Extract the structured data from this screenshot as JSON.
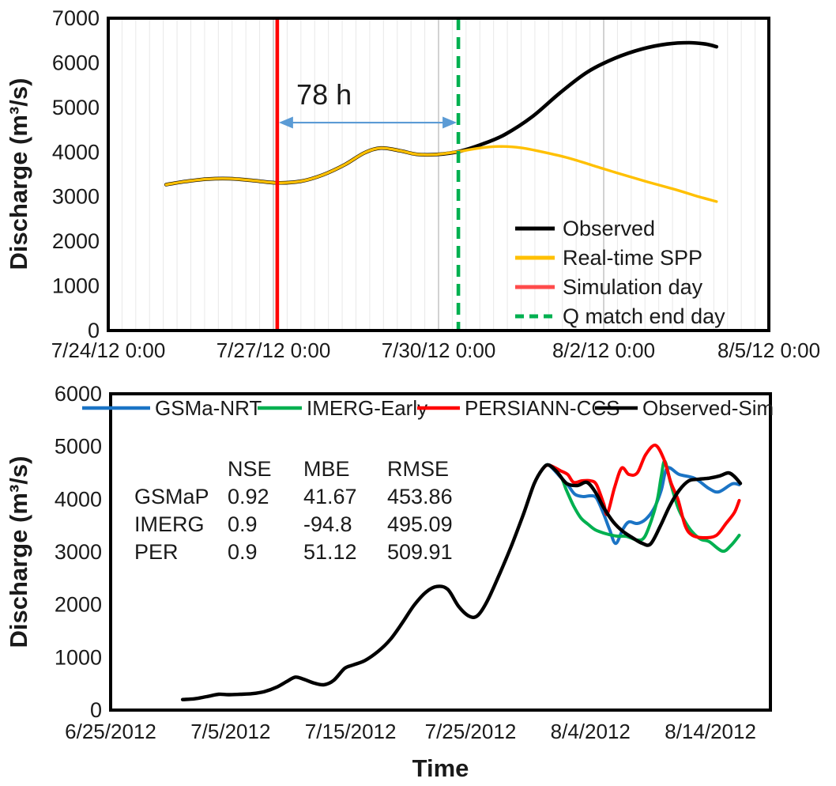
{
  "figure": {
    "description": "Two stacked discharge hydrograph line charts",
    "background": "#ffffff"
  },
  "chart_data": [
    {
      "type": "line",
      "title": "",
      "ylabel": "Discharge (m³/s)",
      "xlabel": "",
      "ylim": [
        0,
        7000
      ],
      "ytick_labels": [
        "0",
        "1000",
        "2000",
        "3000",
        "4000",
        "5000",
        "6000",
        "7000"
      ],
      "xlim": [
        0,
        12
      ],
      "x_unit": "days since 7/24/2012 0:00",
      "xticks": [
        {
          "pos": 0,
          "label": "7/24/12 0:00"
        },
        {
          "pos": 3,
          "label": "7/27/12 0:00"
        },
        {
          "pos": 6,
          "label": "7/30/12 0:00"
        },
        {
          "pos": 9,
          "label": "8/2/12 0:00"
        },
        {
          "pos": 12,
          "label": "8/5/12 0:00"
        }
      ],
      "grid": {
        "minor_step": 0.25,
        "majors": [
          3,
          6,
          9
        ],
        "minor_color": "#e8e8e8",
        "major_color": "#c6c6c6"
      },
      "vlines": [
        {
          "name": "Simulation day",
          "x": 3.07,
          "color": "#ff0000",
          "dash": null
        },
        {
          "name": "Q match end day",
          "x": 6.36,
          "color": "#00b050",
          "dash": "15,9"
        }
      ],
      "annotation": {
        "text": "78 h",
        "text_x": 3.92,
        "text_y": 5070,
        "arrow": {
          "x1": 3.07,
          "x2": 6.36,
          "y": 4660,
          "color": "#5b9bd5"
        }
      },
      "series": [
        {
          "name": "Observed",
          "color": "#000000",
          "width": 4.6,
          "points": [
            [
              1.05,
              3270
            ],
            [
              1.4,
              3340
            ],
            [
              1.8,
              3395
            ],
            [
              2.2,
              3405
            ],
            [
              2.6,
              3365
            ],
            [
              3.07,
              3310
            ],
            [
              3.5,
              3345
            ],
            [
              3.9,
              3490
            ],
            [
              4.3,
              3720
            ],
            [
              4.65,
              3980
            ],
            [
              4.95,
              4090
            ],
            [
              5.3,
              4030
            ],
            [
              5.6,
              3950
            ],
            [
              5.95,
              3945
            ],
            [
              6.36,
              4010
            ],
            [
              6.8,
              4180
            ],
            [
              7.2,
              4390
            ],
            [
              7.7,
              4790
            ],
            [
              8.2,
              5320
            ],
            [
              8.7,
              5790
            ],
            [
              9.2,
              6100
            ],
            [
              9.7,
              6310
            ],
            [
              10.15,
              6420
            ],
            [
              10.55,
              6450
            ],
            [
              10.85,
              6420
            ],
            [
              11.05,
              6360
            ]
          ]
        },
        {
          "name": "Real-time SPP",
          "color": "#ffc000",
          "width": 3.4,
          "points": [
            [
              1.05,
              3270
            ],
            [
              1.4,
              3340
            ],
            [
              1.8,
              3395
            ],
            [
              2.2,
              3405
            ],
            [
              2.6,
              3365
            ],
            [
              3.07,
              3310
            ],
            [
              3.5,
              3345
            ],
            [
              3.9,
              3490
            ],
            [
              4.3,
              3720
            ],
            [
              4.65,
              3980
            ],
            [
              4.95,
              4090
            ],
            [
              5.3,
              4030
            ],
            [
              5.6,
              3950
            ],
            [
              5.95,
              3945
            ],
            [
              6.36,
              4010
            ],
            [
              6.75,
              4090
            ],
            [
              7.1,
              4125
            ],
            [
              7.5,
              4095
            ],
            [
              7.9,
              4000
            ],
            [
              8.35,
              3870
            ],
            [
              8.8,
              3700
            ],
            [
              9.3,
              3510
            ],
            [
              9.8,
              3330
            ],
            [
              10.3,
              3160
            ],
            [
              10.7,
              3010
            ],
            [
              11.05,
              2890
            ]
          ]
        }
      ],
      "legend": {
        "position": "inside-bottom-right",
        "items": [
          {
            "label": "Observed",
            "color": "#000000",
            "dash": null
          },
          {
            "label": "Real-time SPP",
            "color": "#ffc000",
            "dash": null
          },
          {
            "label": "Simulation day",
            "color": "#ff4b4b",
            "dash": null
          },
          {
            "label": "Q match end day",
            "color": "#00b050",
            "dash": "11,7"
          }
        ]
      }
    },
    {
      "type": "line",
      "title": "",
      "ylabel": "Discharge (m³/s)",
      "xlabel": "Time",
      "ylim": [
        0,
        6000
      ],
      "ytick_labels": [
        "0",
        "1000",
        "2000",
        "3000",
        "4000",
        "5000",
        "6000"
      ],
      "xlim": [
        0,
        55
      ],
      "x_unit": "days since 6/25/2012",
      "xticks": [
        {
          "pos": 0,
          "label": "6/25/2012"
        },
        {
          "pos": 10,
          "label": "7/5/2012"
        },
        {
          "pos": 20,
          "label": "7/15/2012"
        },
        {
          "pos": 30,
          "label": "7/25/2012"
        },
        {
          "pos": 40,
          "label": "8/4/2012"
        },
        {
          "pos": 50,
          "label": "8/14/2012"
        }
      ],
      "grid": null,
      "vlines": [],
      "annotation": null,
      "stats_table": {
        "col_headers": [
          "NSE",
          "MBE",
          "RMSE"
        ],
        "rows": [
          {
            "label": "GSMaP",
            "values": [
              "0.92",
              "41.67",
              "453.86"
            ]
          },
          {
            "label": "IMERG",
            "values": [
              "0.9",
              "-94.8",
              "495.09"
            ]
          },
          {
            "label": "PER",
            "values": [
              "0.9",
              "51.12",
              "509.91"
            ]
          }
        ]
      },
      "series": [
        {
          "name": "GSMa-NRT",
          "color": "#1b74c5",
          "width": 4,
          "points": [
            [
              36.0,
              4570
            ],
            [
              36.5,
              4650
            ],
            [
              37.5,
              4420
            ],
            [
              38.1,
              4275
            ],
            [
              38.7,
              4095
            ],
            [
              39.4,
              4050
            ],
            [
              40.0,
              4065
            ],
            [
              40.5,
              4020
            ],
            [
              41.1,
              3720
            ],
            [
              41.6,
              3420
            ],
            [
              42.1,
              3160
            ],
            [
              42.7,
              3430
            ],
            [
              43.2,
              3570
            ],
            [
              43.9,
              3540
            ],
            [
              44.6,
              3620
            ],
            [
              45.3,
              3825
            ],
            [
              45.9,
              4170
            ],
            [
              46.4,
              4590
            ],
            [
              47.4,
              4470
            ],
            [
              48.7,
              4395
            ],
            [
              49.9,
              4200
            ],
            [
              50.7,
              4140
            ],
            [
              51.8,
              4290
            ],
            [
              52.4,
              4275
            ]
          ]
        },
        {
          "name": "IMERG-Early",
          "color": "#00b050",
          "width": 4,
          "points": [
            [
              36.0,
              4570
            ],
            [
              36.5,
              4650
            ],
            [
              37.5,
              4440
            ],
            [
              38.0,
              4170
            ],
            [
              38.6,
              3870
            ],
            [
              39.2,
              3645
            ],
            [
              39.8,
              3525
            ],
            [
              40.4,
              3420
            ],
            [
              41.3,
              3345
            ],
            [
              42.2,
              3300
            ],
            [
              43.0,
              3295
            ],
            [
              43.9,
              3225
            ],
            [
              44.5,
              3280
            ],
            [
              45.1,
              3615
            ],
            [
              45.6,
              4020
            ],
            [
              45.9,
              4430
            ],
            [
              46.2,
              4720
            ],
            [
              46.7,
              4290
            ],
            [
              47.3,
              3840
            ],
            [
              47.9,
              3570
            ],
            [
              48.5,
              3375
            ],
            [
              49.2,
              3240
            ],
            [
              49.9,
              3195
            ],
            [
              51.0,
              3015
            ],
            [
              51.7,
              3120
            ],
            [
              52.4,
              3315
            ]
          ]
        },
        {
          "name": "PERSIANN-CCS",
          "color": "#ff0000",
          "width": 4,
          "points": [
            [
              36.0,
              4570
            ],
            [
              36.5,
              4650
            ],
            [
              37.5,
              4540
            ],
            [
              38.1,
              4470
            ],
            [
              38.6,
              4320
            ],
            [
              39.3,
              4350
            ],
            [
              40.0,
              4350
            ],
            [
              40.5,
              4275
            ],
            [
              41.1,
              3915
            ],
            [
              41.4,
              3720
            ],
            [
              42.0,
              4215
            ],
            [
              42.6,
              4590
            ],
            [
              43.2,
              4470
            ],
            [
              43.9,
              4500
            ],
            [
              44.6,
              4845
            ],
            [
              45.4,
              5025
            ],
            [
              46.1,
              4770
            ],
            [
              46.7,
              4320
            ],
            [
              47.3,
              3990
            ],
            [
              47.9,
              3495
            ],
            [
              48.5,
              3315
            ],
            [
              49.5,
              3270
            ],
            [
              50.5,
              3315
            ],
            [
              51.3,
              3540
            ],
            [
              52.0,
              3750
            ],
            [
              52.4,
              3975
            ]
          ]
        },
        {
          "name": "Observed-Sim",
          "color": "#000000",
          "width": 4.4,
          "points": [
            [
              6.0,
              200
            ],
            [
              7.0,
              215
            ],
            [
              8.0,
              255
            ],
            [
              9.0,
              300
            ],
            [
              9.8,
              292
            ],
            [
              10.8,
              300
            ],
            [
              11.8,
              312
            ],
            [
              12.8,
              350
            ],
            [
              13.8,
              430
            ],
            [
              14.7,
              545
            ],
            [
              15.4,
              625
            ],
            [
              16.1,
              585
            ],
            [
              17.0,
              510
            ],
            [
              17.8,
              482
            ],
            [
              18.6,
              565
            ],
            [
              19.5,
              790
            ],
            [
              20.2,
              855
            ],
            [
              21.2,
              940
            ],
            [
              22.3,
              1115
            ],
            [
              23.3,
              1335
            ],
            [
              24.3,
              1650
            ],
            [
              25.3,
              1990
            ],
            [
              26.3,
              2240
            ],
            [
              27.2,
              2345
            ],
            [
              28.1,
              2290
            ],
            [
              29.0,
              1970
            ],
            [
              29.9,
              1780
            ],
            [
              30.6,
              1795
            ],
            [
              31.4,
              2070
            ],
            [
              32.4,
              2570
            ],
            [
              33.4,
              3110
            ],
            [
              34.4,
              3710
            ],
            [
              35.3,
              4290
            ],
            [
              36.0,
              4570
            ],
            [
              36.5,
              4650
            ],
            [
              37.2,
              4520
            ],
            [
              38.0,
              4300
            ],
            [
              38.9,
              4260
            ],
            [
              39.7,
              4320
            ],
            [
              40.4,
              4140
            ],
            [
              41.1,
              3840
            ],
            [
              41.9,
              3570
            ],
            [
              42.7,
              3390
            ],
            [
              43.5,
              3270
            ],
            [
              44.3,
              3165
            ],
            [
              45.0,
              3150
            ],
            [
              45.8,
              3480
            ],
            [
              46.6,
              3870
            ],
            [
              47.4,
              4170
            ],
            [
              48.2,
              4350
            ],
            [
              49.0,
              4380
            ],
            [
              49.9,
              4400
            ],
            [
              50.8,
              4445
            ],
            [
              51.5,
              4500
            ],
            [
              52.0,
              4430
            ],
            [
              52.5,
              4300
            ]
          ]
        }
      ],
      "legend": {
        "position": "top-inside",
        "items": [
          {
            "label": "GSMa-NRT",
            "color": "#1b74c5",
            "dash": null
          },
          {
            "label": "IMERG-Early",
            "color": "#00b050",
            "dash": null
          },
          {
            "label": "PERSIANN-CCS",
            "color": "#ff0000",
            "dash": null
          },
          {
            "label": "Observed-Sim",
            "color": "#000000",
            "dash": null
          }
        ]
      }
    }
  ]
}
